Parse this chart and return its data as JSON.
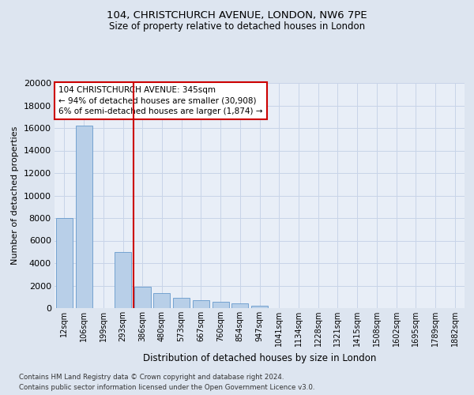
{
  "title1": "104, CHRISTCHURCH AVENUE, LONDON, NW6 7PE",
  "title2": "Size of property relative to detached houses in London",
  "xlabel": "Distribution of detached houses by size in London",
  "ylabel": "Number of detached properties",
  "categories": [
    "12sqm",
    "106sqm",
    "199sqm",
    "293sqm",
    "386sqm",
    "480sqm",
    "573sqm",
    "667sqm",
    "760sqm",
    "854sqm",
    "947sqm",
    "1041sqm",
    "1134sqm",
    "1228sqm",
    "1321sqm",
    "1415sqm",
    "1508sqm",
    "1602sqm",
    "1695sqm",
    "1789sqm",
    "1882sqm"
  ],
  "values": [
    8000,
    16200,
    0,
    5000,
    1900,
    1300,
    900,
    700,
    550,
    450,
    200,
    0,
    0,
    0,
    0,
    0,
    0,
    0,
    0,
    0,
    0
  ],
  "bar_color": "#b8cfe8",
  "bar_edge_color": "#6699cc",
  "vline_color": "#cc0000",
  "vline_x": 3.55,
  "annotation_text": "104 CHRISTCHURCH AVENUE: 345sqm\n← 94% of detached houses are smaller (30,908)\n6% of semi-detached houses are larger (1,874) →",
  "annotation_box_facecolor": "#ffffff",
  "annotation_box_edgecolor": "#cc0000",
  "footer1": "Contains HM Land Registry data © Crown copyright and database right 2024.",
  "footer2": "Contains public sector information licensed under the Open Government Licence v3.0.",
  "ylim": [
    0,
    20000
  ],
  "yticks": [
    0,
    2000,
    4000,
    6000,
    8000,
    10000,
    12000,
    14000,
    16000,
    18000,
    20000
  ],
  "bg_color": "#dde5f0",
  "plot_bg_color": "#e8eef7",
  "grid_color": "#c8d4e8"
}
